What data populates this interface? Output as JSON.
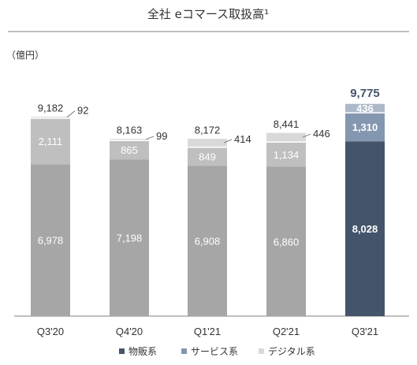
{
  "chart_data": {
    "type": "bar",
    "title": "全社 eコマース取扱高¹",
    "unit_label": "（億円）",
    "categories": [
      "Q3'20",
      "Q4'20",
      "Q1'21",
      "Q2'21",
      "Q3'21"
    ],
    "series": [
      {
        "name": "物販系",
        "values": [
          6978,
          7198,
          6908,
          6860,
          8028
        ]
      },
      {
        "name": "サービス系",
        "values": [
          2111,
          865,
          849,
          1134,
          1310
        ]
      },
      {
        "name": "デジタル系",
        "values": [
          92,
          99,
          414,
          446,
          436
        ]
      }
    ],
    "totals": [
      9182,
      8163,
      8172,
      8441,
      9775
    ],
    "labels": {
      "physical": [
        "6,978",
        "7,198",
        "6,908",
        "6,860",
        "8,028"
      ],
      "service": [
        "2,111",
        "865",
        "849",
        "1,134",
        "1,310"
      ],
      "digital": [
        "92",
        "99",
        "414",
        "446",
        "436"
      ],
      "totals": [
        "9,182",
        "8,163",
        "8,172",
        "8,441",
        "9,775"
      ]
    },
    "highlight_index": 4,
    "stacked": true,
    "ylim": [
      0,
      10000
    ],
    "grid": false,
    "legend_position": "bottom",
    "colors": {
      "physical": "#a6a6a6",
      "service": "#bfbfbf",
      "digital": "#d9d9d9",
      "physical_highlight": "#44546a",
      "service_highlight": "#8497b0",
      "digital_highlight": "#adb9ca",
      "legend_physical": "#44546a",
      "legend_service": "#8497b0",
      "legend_digital": "#d9d9d9"
    }
  }
}
